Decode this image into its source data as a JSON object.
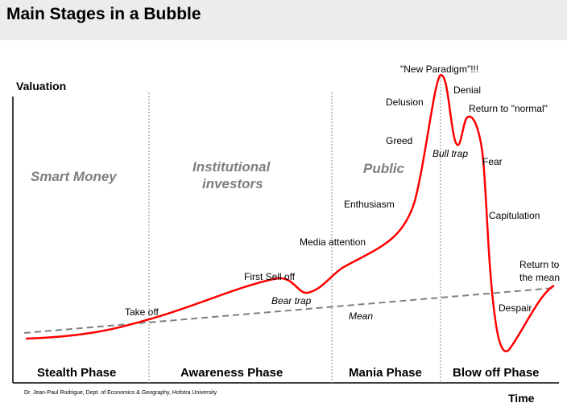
{
  "title": "Main Stages in a Bubble",
  "axes": {
    "y_label": "Valuation",
    "x_label": "Time"
  },
  "investor_groups": [
    "Smart Money",
    "Institutional investors",
    "Public"
  ],
  "phases": [
    "Stealth Phase",
    "Awareness Phase",
    "Mania Phase",
    "Blow off Phase"
  ],
  "annotations": {
    "take_off": "Take off",
    "first_sell_off": "First Sell off",
    "bear_trap": "Bear trap",
    "media_attention": "Media attention",
    "enthusiasm": "Enthusiasm",
    "greed": "Greed",
    "delusion": "Delusion",
    "new_paradigm": "\"New Paradigm\"!!!",
    "denial": "Denial",
    "bull_trap": "Bull trap",
    "return_to_normal": "Return to \"normal\"",
    "fear": "Fear",
    "capitulation": "Capitulation",
    "despair": "Despair",
    "return_to_mean": "Return to the mean",
    "mean": "Mean"
  },
  "credit": "Dr. Jean-Paul Rodrigue, Dept. of Economics & Geography, Hofstra University",
  "colors": {
    "curve": "#ff0000",
    "mean": "#808080",
    "group_text": "#7f7f7f",
    "header_bg": "#ececec"
  }
}
